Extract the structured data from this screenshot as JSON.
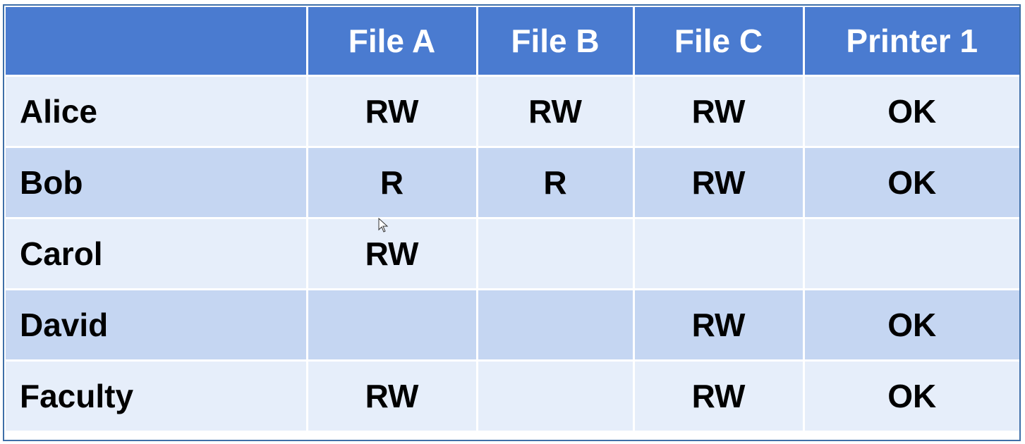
{
  "table": {
    "headers": [
      "",
      "File A",
      "File B",
      "File C",
      "Printer 1"
    ],
    "rows": [
      {
        "name": "Alice",
        "cells": [
          "RW",
          "RW",
          "RW",
          "OK"
        ]
      },
      {
        "name": "Bob",
        "cells": [
          "R",
          "R",
          "RW",
          "OK"
        ]
      },
      {
        "name": "Carol",
        "cells": [
          "RW",
          "",
          "",
          ""
        ]
      },
      {
        "name": "David",
        "cells": [
          "",
          "",
          "RW",
          "OK"
        ]
      },
      {
        "name": "Faculty",
        "cells": [
          "RW",
          "",
          "RW",
          "OK"
        ]
      }
    ]
  },
  "colors": {
    "header": "#4a7bd0",
    "row_light": "#e6eefa",
    "row_dark": "#c5d6f2",
    "border": "#3f6fa8"
  },
  "cursor": {
    "icon": "mouse-pointer-icon"
  }
}
